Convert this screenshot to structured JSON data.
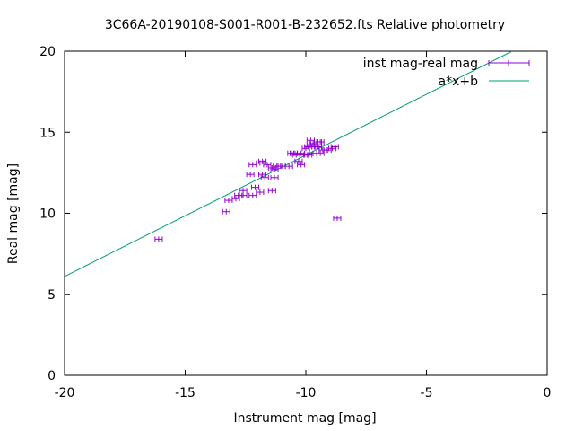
{
  "chart_data": {
    "type": "scatter",
    "title": "3C66A-20190108-S001-R001-B-232652.fts Relative photometry",
    "xlabel": "Instrument mag [mag]",
    "ylabel": "Real mag [mag]",
    "xlim": [
      -20,
      0
    ],
    "ylim": [
      0,
      20
    ],
    "xticks": [
      -20,
      -15,
      -10,
      -5,
      0
    ],
    "yticks": [
      0,
      5,
      10,
      15,
      20
    ],
    "grid": false,
    "legend_position": "top-right",
    "series": [
      {
        "name": "inst mag-real mag",
        "style": "points-with-xerrorbars",
        "color": "#9400d3",
        "x_error": 0.15,
        "points": [
          [
            -16.1,
            8.4
          ],
          [
            -13.3,
            10.1
          ],
          [
            -13.2,
            10.8
          ],
          [
            -12.9,
            10.9
          ],
          [
            -12.8,
            11.1
          ],
          [
            -12.6,
            11.4
          ],
          [
            -12.6,
            11.1
          ],
          [
            -12.3,
            12.4
          ],
          [
            -12.2,
            13.0
          ],
          [
            -12.2,
            11.1
          ],
          [
            -12.1,
            11.6
          ],
          [
            -11.9,
            11.3
          ],
          [
            -11.9,
            13.1
          ],
          [
            -11.8,
            13.2
          ],
          [
            -11.8,
            12.4
          ],
          [
            -11.7,
            12.2
          ],
          [
            -11.6,
            13.0
          ],
          [
            -11.4,
            11.4
          ],
          [
            -11.4,
            12.8
          ],
          [
            -11.3,
            12.7
          ],
          [
            -11.3,
            12.2
          ],
          [
            -11.2,
            12.9
          ],
          [
            -11.0,
            12.9
          ],
          [
            -10.7,
            12.9
          ],
          [
            -10.6,
            13.7
          ],
          [
            -10.5,
            13.7
          ],
          [
            -10.4,
            13.6
          ],
          [
            -10.3,
            13.2
          ],
          [
            -10.2,
            13.7
          ],
          [
            -10.2,
            13.0
          ],
          [
            -10.1,
            13.6
          ],
          [
            -10.0,
            14.0
          ],
          [
            -9.9,
            13.6
          ],
          [
            -9.9,
            14.1
          ],
          [
            -9.8,
            14.5
          ],
          [
            -9.8,
            14.2
          ],
          [
            -9.7,
            13.7
          ],
          [
            -9.7,
            14.3
          ],
          [
            -9.6,
            14.1
          ],
          [
            -9.5,
            14.4
          ],
          [
            -9.5,
            14.1
          ],
          [
            -9.4,
            14.4
          ],
          [
            -9.4,
            13.7
          ],
          [
            -9.3,
            13.9
          ],
          [
            -9.1,
            13.9
          ],
          [
            -8.9,
            14.0
          ],
          [
            -8.8,
            14.1
          ],
          [
            -8.7,
            9.7
          ]
        ]
      },
      {
        "name": "a*x+b",
        "style": "line",
        "color": "#009e73",
        "points": [
          [
            -20,
            6.1
          ],
          [
            -1.45,
            20
          ]
        ]
      }
    ]
  }
}
